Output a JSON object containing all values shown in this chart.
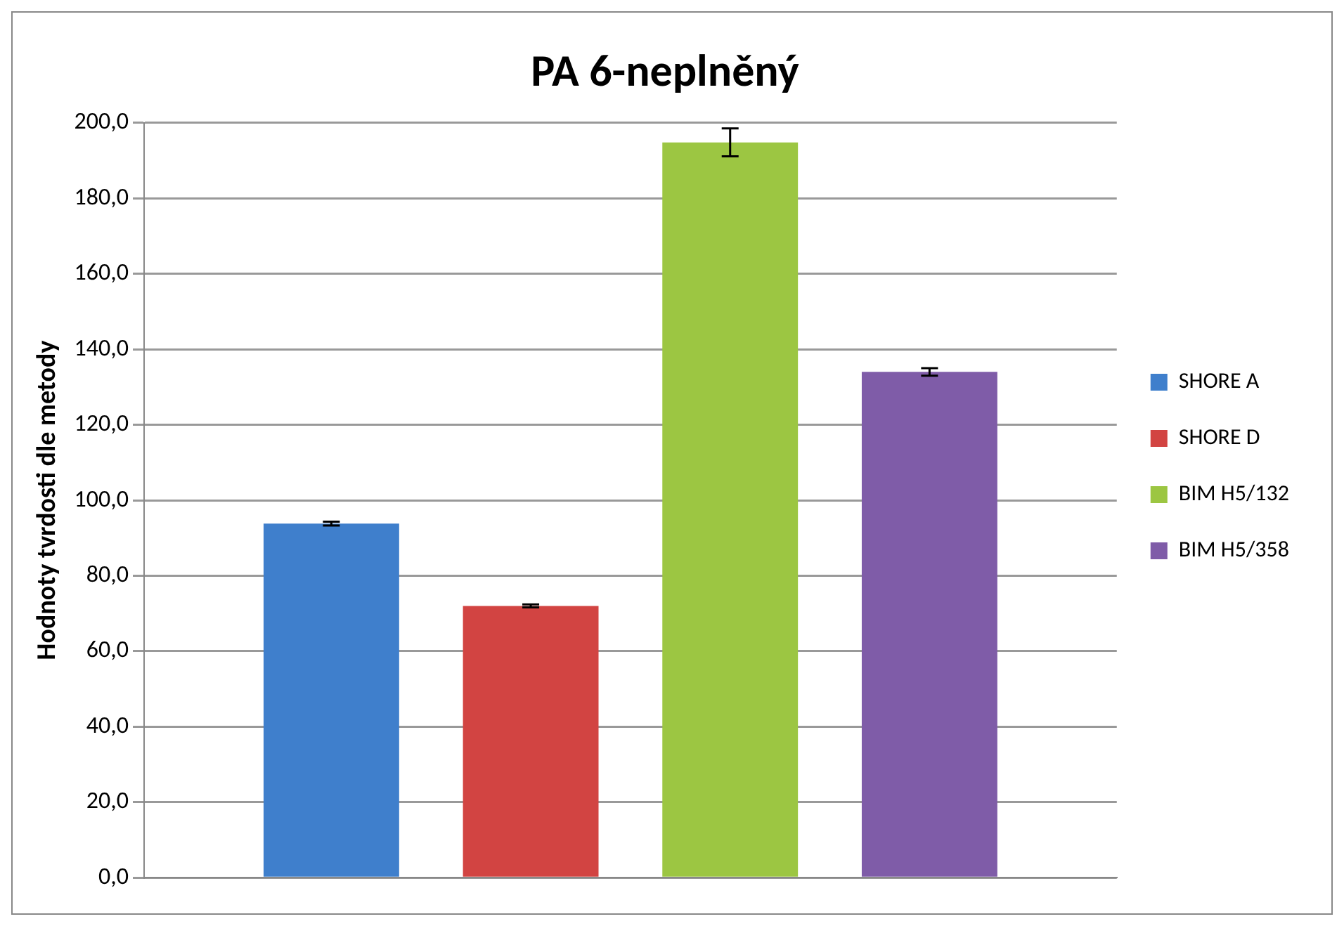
{
  "chart_data": {
    "type": "bar",
    "title": "PA 6-neplněný",
    "ylabel": "Hodnoty tvrdosti dle metody",
    "categories": [
      null
    ],
    "series": [
      {
        "name": "SHORE A",
        "color": "#3f7fcc",
        "values": [
          93.8
        ],
        "errors": [
          0.5
        ]
      },
      {
        "name": "SHORE D",
        "color": "#d24442",
        "values": [
          72.0
        ],
        "errors": [
          0.4
        ]
      },
      {
        "name": "BIM H5/132",
        "color": "#9cc642",
        "values": [
          194.8
        ],
        "errors": [
          3.7
        ]
      },
      {
        "name": "BIM H5/358",
        "color": "#7f5ca8",
        "values": [
          134.0
        ],
        "errors": [
          1.0
        ]
      }
    ],
    "ylim": [
      0,
      200
    ],
    "yticks": [
      {
        "value": 0,
        "label": "0,0"
      },
      {
        "value": 20,
        "label": "20,0"
      },
      {
        "value": 40,
        "label": "40,0"
      },
      {
        "value": 60,
        "label": "60,0"
      },
      {
        "value": 80,
        "label": "80,0"
      },
      {
        "value": 100,
        "label": "100,0"
      },
      {
        "value": 120,
        "label": "120,0"
      },
      {
        "value": 140,
        "label": "140,0"
      },
      {
        "value": 160,
        "label": "160,0"
      },
      {
        "value": 180,
        "label": "180,0"
      },
      {
        "value": 200,
        "label": "200,0"
      }
    ],
    "grid": "y",
    "legend": "right"
  }
}
